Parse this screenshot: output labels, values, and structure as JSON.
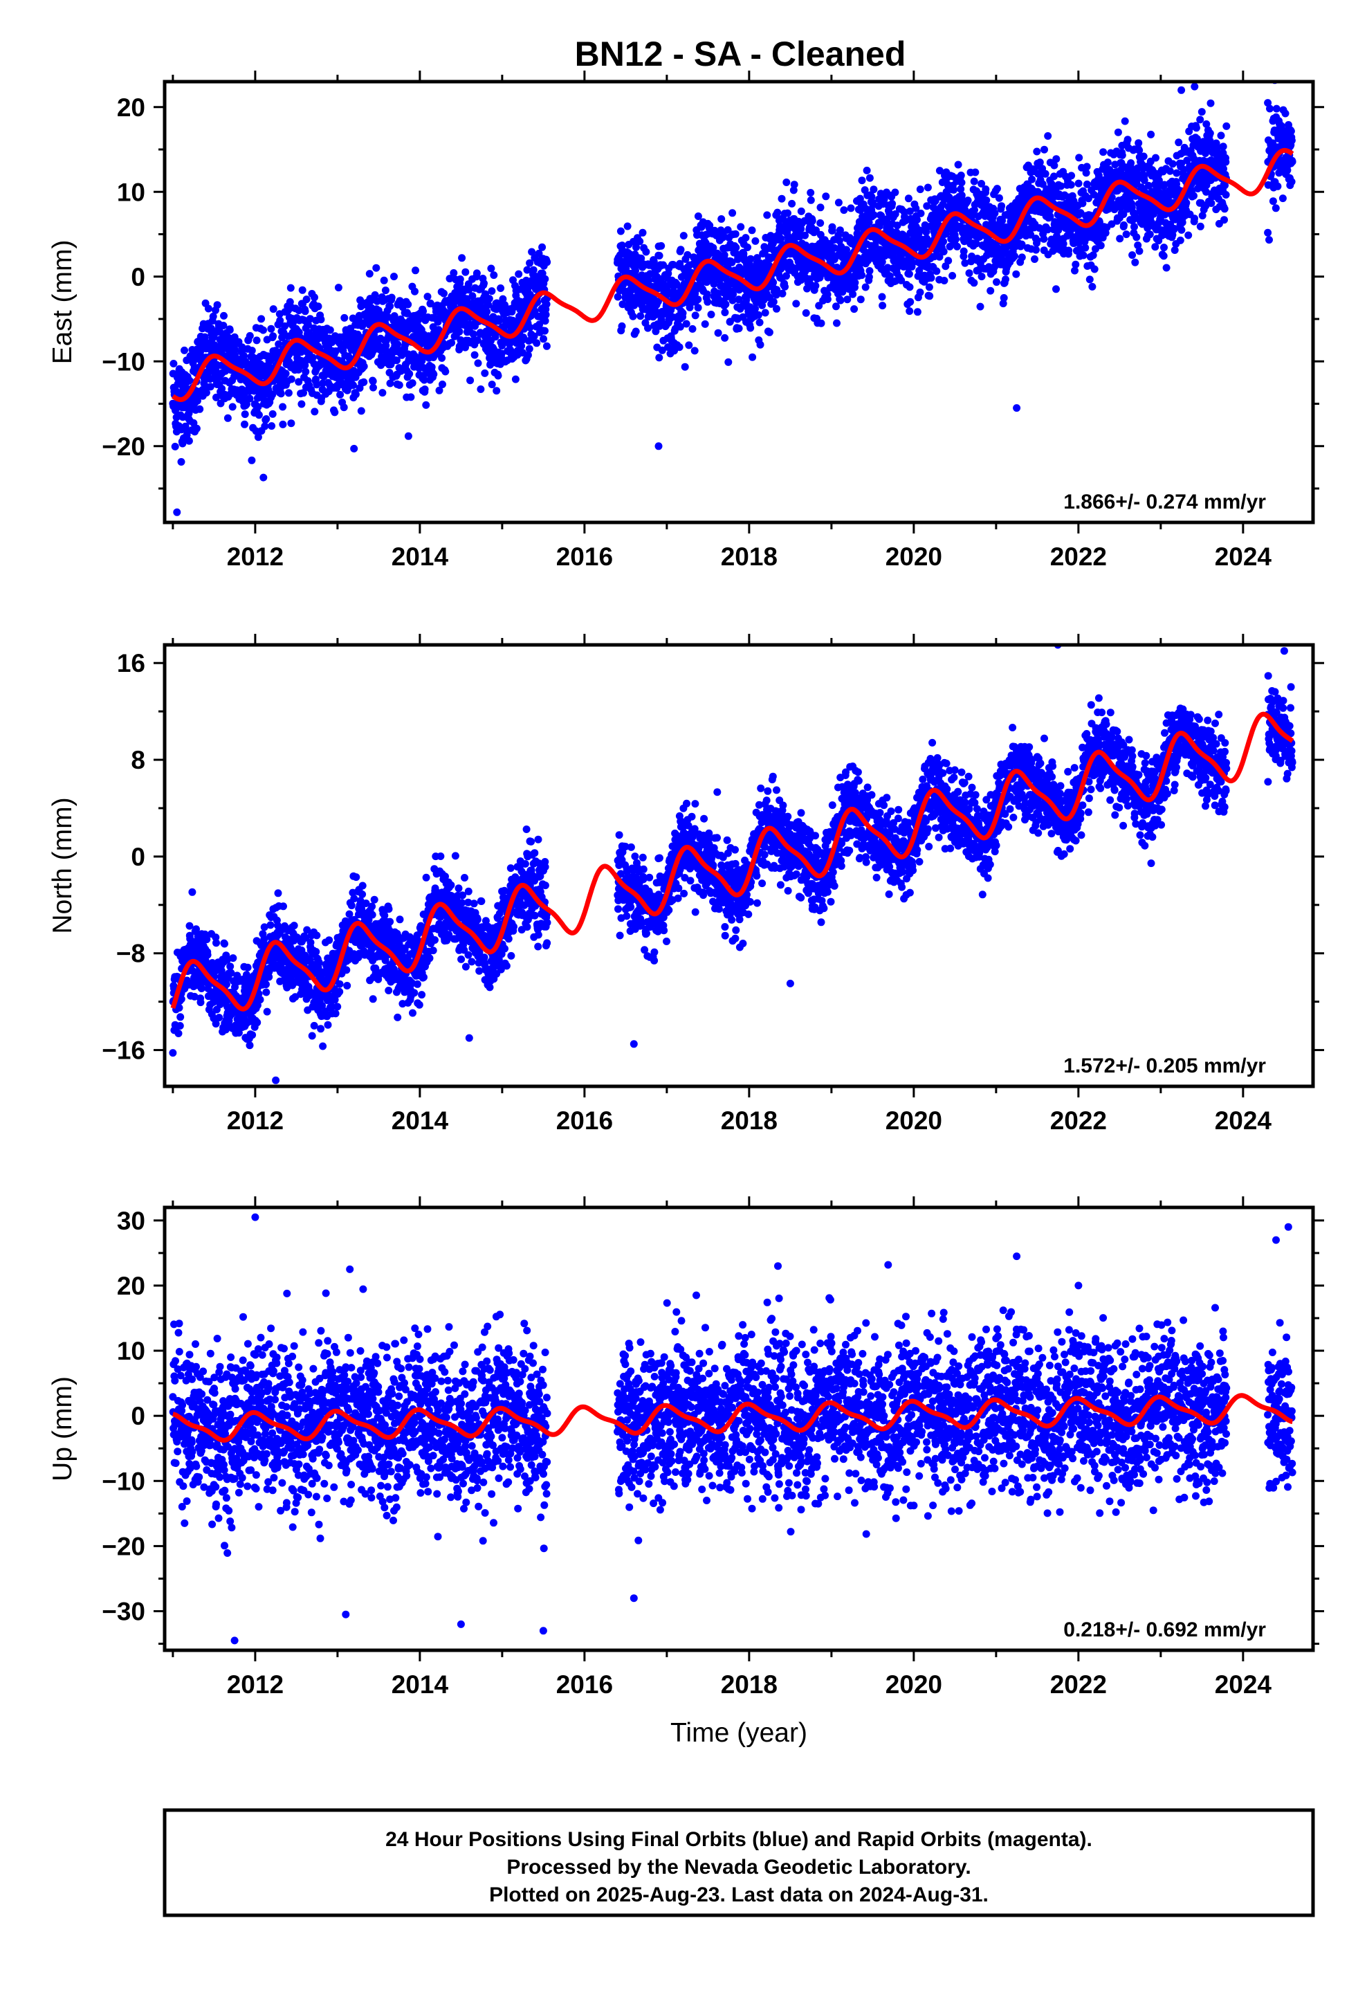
{
  "title": "BN12  - SA - Cleaned",
  "caption": {
    "lines": [
      "24 Hour Positions Using Final Orbits (blue) and Rapid Orbits (magenta).",
      "Processed by the Nevada Geodetic Laboratory.",
      "Plotted on 2025-Aug-23. Last data on 2024-Aug-31."
    ]
  },
  "colors": {
    "observations": "#0000ff",
    "model": "#ff0000",
    "frame": "#000000"
  },
  "chart_data": [
    {
      "type": "scatter",
      "name": "east",
      "ylabel": "East (mm)",
      "xlabel": "",
      "xlim": [
        2010.9,
        2024.85
      ],
      "ylim": [
        -29,
        23
      ],
      "xticks": [
        2012,
        2014,
        2016,
        2018,
        2020,
        2022,
        2024
      ],
      "yticks": [
        20,
        10,
        0,
        -10,
        -20
      ],
      "rate_label": "1.866+/- 0.274 mm/yr",
      "trend": {
        "t0": 2011.0,
        "y0": -12.5,
        "rate": 1.866,
        "annual_amp": 2.0,
        "annual_phase": 0.3,
        "semiannual_amp": 0.5
      },
      "noise_sd": 2.8,
      "outliers": [
        [
          2011.05,
          -27.8
        ],
        [
          2012.1,
          -23.7
        ],
        [
          2013.2,
          -20.3
        ],
        [
          2016.9,
          -20.0
        ],
        [
          2021.25,
          -15.5
        ],
        [
          2023.25,
          22.0
        ],
        [
          2024.3,
          20.5
        ],
        [
          2019.6,
          9.8
        ]
      ],
      "segments": [
        [
          2011.0,
          2015.55
        ],
        [
          2016.4,
          2023.8
        ],
        [
          2024.3,
          2024.6
        ]
      ],
      "model_range": [
        2011.0,
        2024.6
      ]
    },
    {
      "type": "scatter",
      "name": "north",
      "ylabel": "North (mm)",
      "xlabel": "",
      "xlim": [
        2010.9,
        2024.85
      ],
      "ylim": [
        -19,
        17.5
      ],
      "xticks": [
        2012,
        2014,
        2016,
        2018,
        2020,
        2022,
        2024
      ],
      "yticks": [
        16,
        8,
        0,
        -8,
        -16
      ],
      "rate_label": "1.572+/- 0.205 mm/yr",
      "trend": {
        "t0": 2011.0,
        "y0": -11.5,
        "rate": 1.572,
        "annual_amp": 2.2,
        "annual_phase": 0.05,
        "semiannual_amp": 0.6
      },
      "noise_sd": 1.6,
      "outliers": [
        [
          2012.25,
          -18.5
        ],
        [
          2016.6,
          -15.5
        ],
        [
          2018.5,
          -10.5
        ],
        [
          2021.75,
          17.5
        ],
        [
          2024.5,
          17.0
        ],
        [
          2014.6,
          -15.0
        ]
      ],
      "segments": [
        [
          2011.0,
          2015.55
        ],
        [
          2016.4,
          2023.8
        ],
        [
          2024.3,
          2024.6
        ]
      ],
      "model_range": [
        2011.0,
        2024.6
      ]
    },
    {
      "type": "scatter",
      "name": "up",
      "ylabel": "Up (mm)",
      "xlabel": "Time (year)",
      "xlim": [
        2010.9,
        2024.85
      ],
      "ylim": [
        -36,
        32
      ],
      "xticks": [
        2012,
        2014,
        2016,
        2018,
        2020,
        2022,
        2024
      ],
      "yticks": [
        30,
        20,
        10,
        0,
        -10,
        -20,
        -30
      ],
      "rate_label": "0.218+/- 0.692 mm/yr",
      "trend": {
        "t0": 2011.0,
        "y0": -1.8,
        "rate": 0.218,
        "annual_amp": 1.8,
        "annual_phase": 0.8,
        "semiannual_amp": 0.6
      },
      "noise_sd": 5.8,
      "outliers": [
        [
          2012.0,
          30.5
        ],
        [
          2011.75,
          -34.5
        ],
        [
          2013.1,
          -30.5
        ],
        [
          2014.5,
          -32.0
        ],
        [
          2015.5,
          -33.0
        ],
        [
          2013.15,
          22.5
        ],
        [
          2018.35,
          23.0
        ],
        [
          2021.25,
          24.5
        ],
        [
          2022.0,
          20.0
        ],
        [
          2024.55,
          29.0
        ],
        [
          2024.4,
          27.0
        ],
        [
          2016.6,
          -28.0
        ]
      ],
      "segments": [
        [
          2011.0,
          2015.55
        ],
        [
          2016.4,
          2023.8
        ],
        [
          2024.3,
          2024.6
        ]
      ],
      "model_range": [
        2011.0,
        2024.6
      ]
    }
  ]
}
